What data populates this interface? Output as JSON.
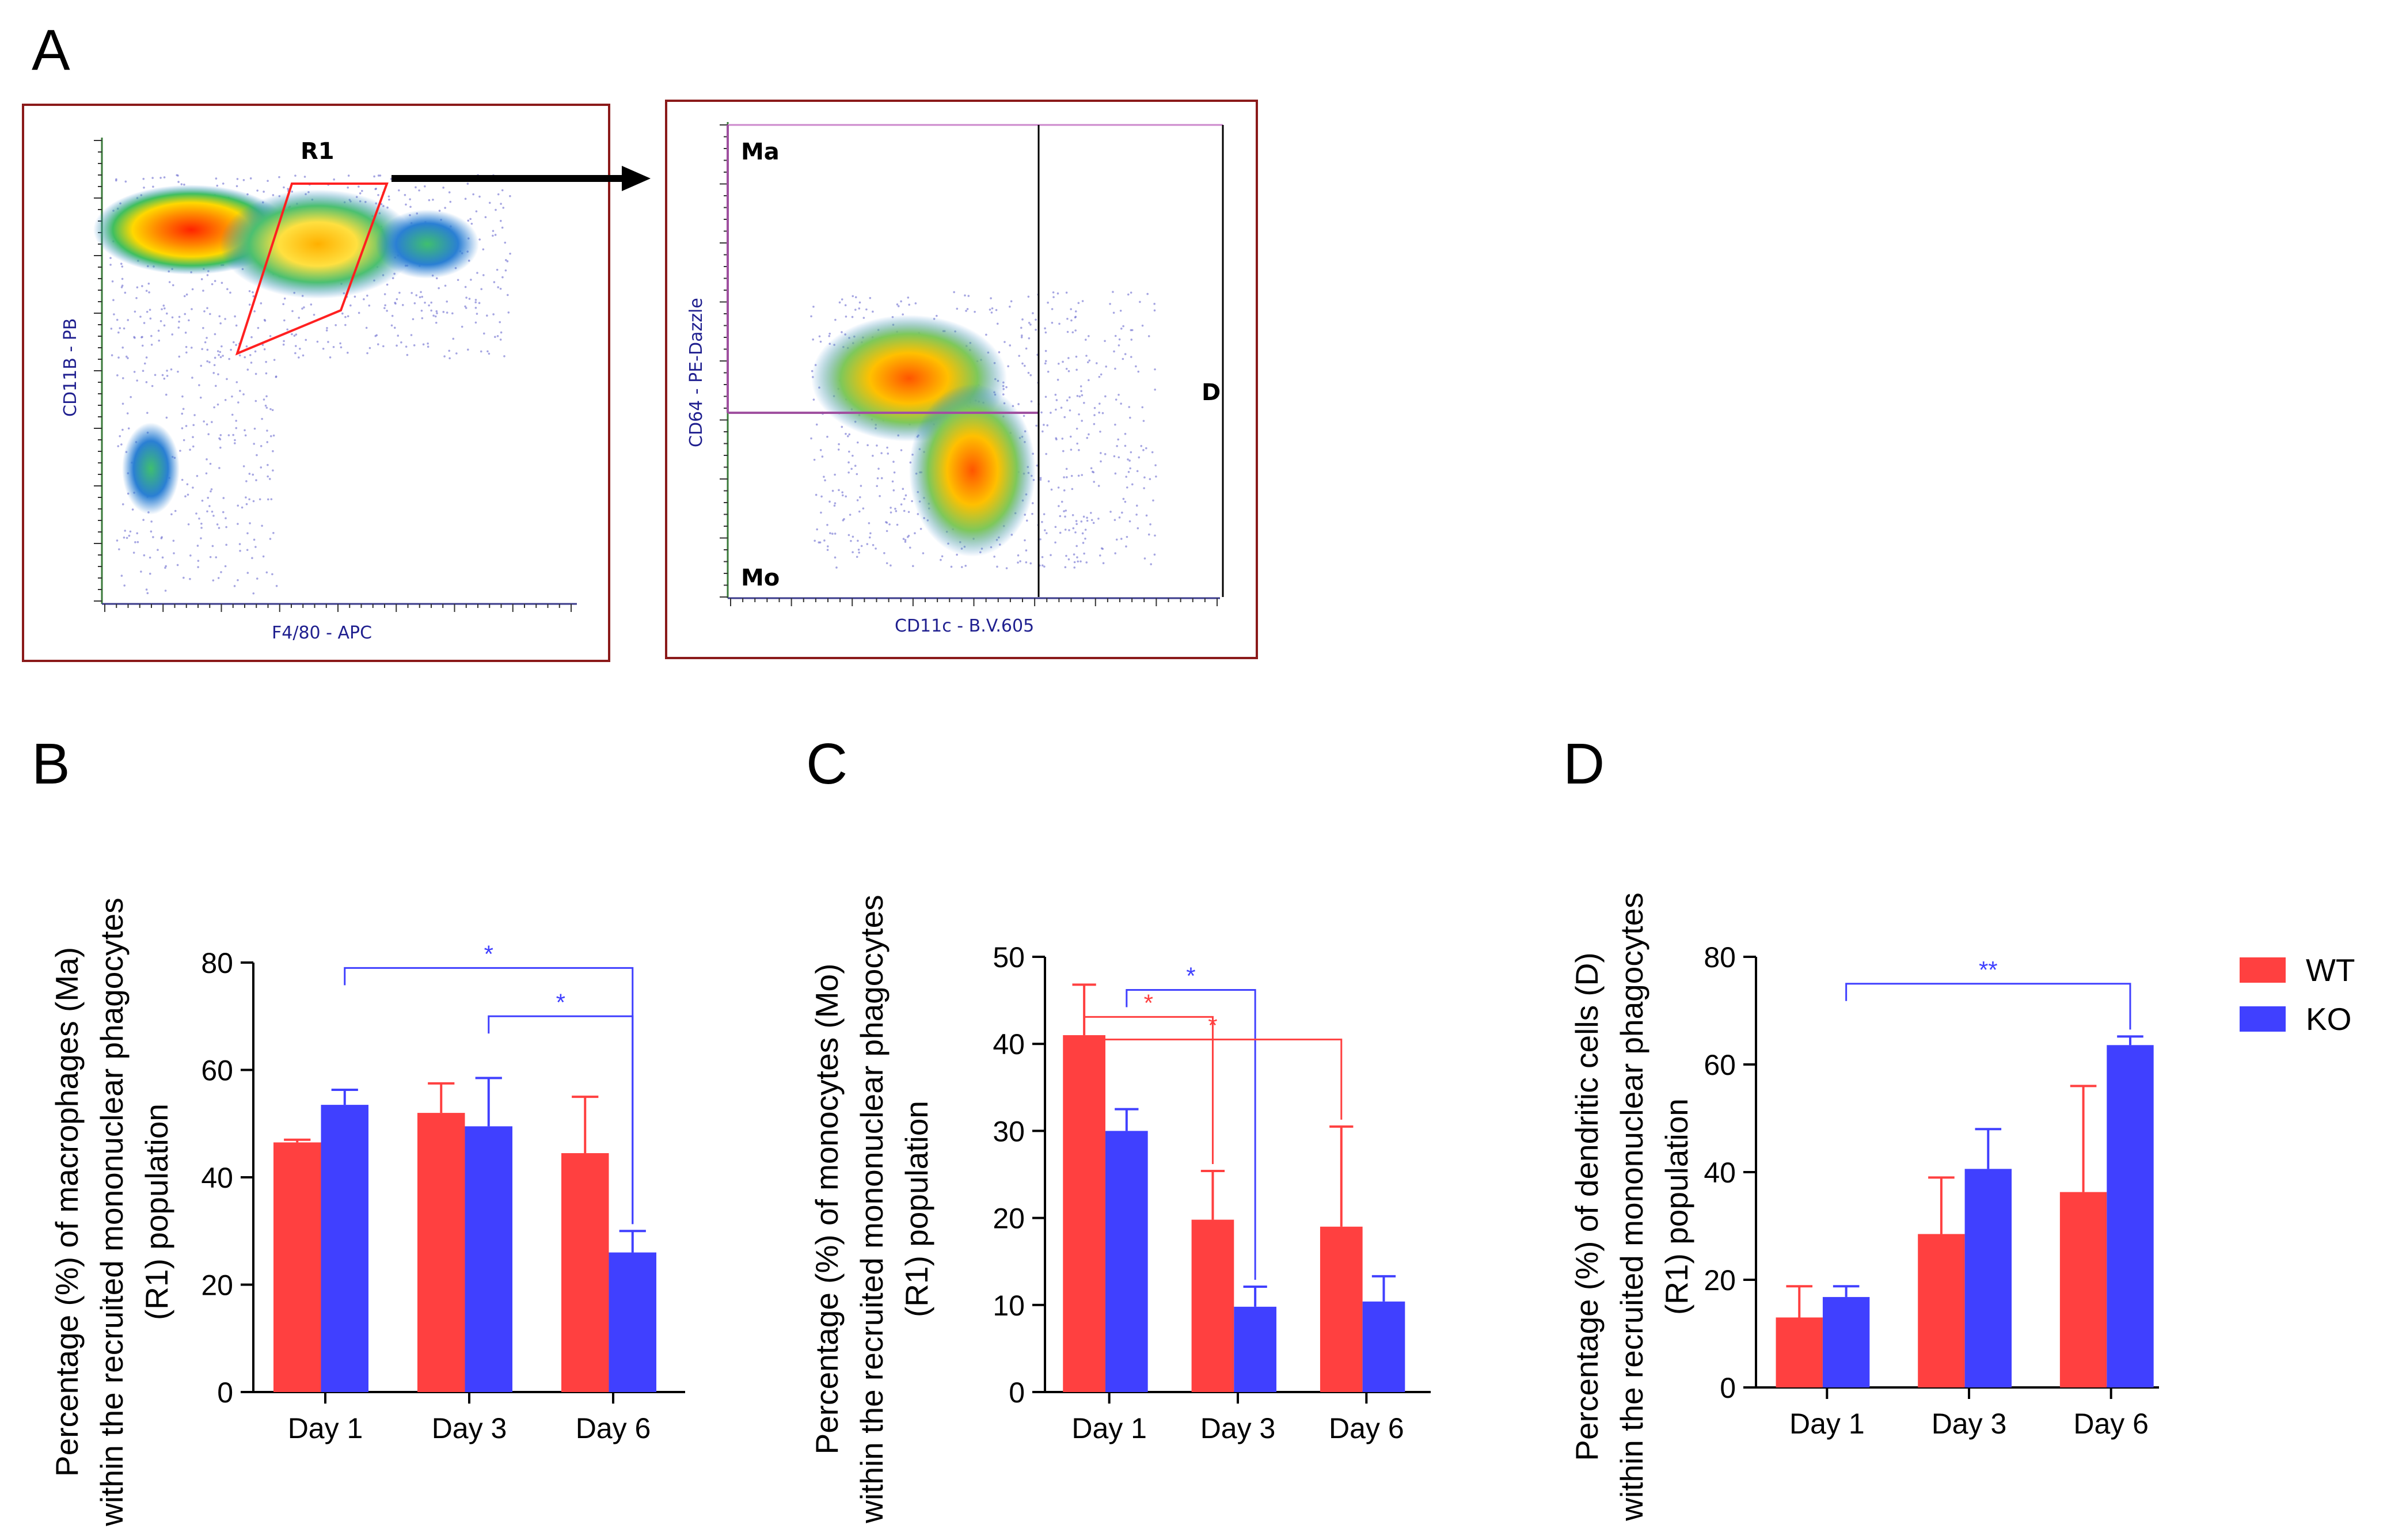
{
  "panels": {
    "a_letter": "A",
    "b_letter": "B",
    "c_letter": "C",
    "d_letter": "D"
  },
  "flow": {
    "left": {
      "gate": "R1",
      "xlabel": "F4/80 - APC",
      "ylabel": "CD11B - PB"
    },
    "right": {
      "q_ma": "Ma",
      "q_mo": "Mo",
      "q_d": "D",
      "xlabel": "CD11c - B.V.605",
      "ylabel": "CD64 - PE-Dazzle"
    }
  },
  "legend": {
    "wt": "WT",
    "ko": "KO"
  },
  "colors": {
    "wt": "#ff4040",
    "ko": "#4040ff",
    "frame": "#8b1a1a"
  },
  "chart_data": [
    {
      "type": "bar",
      "panel": "B",
      "categories": [
        "Day 1",
        "Day 3",
        "Day 6"
      ],
      "series": [
        {
          "name": "WT",
          "values": [
            46.5,
            52,
            44.5
          ],
          "errors": [
            0.5,
            5.5,
            10.5
          ]
        },
        {
          "name": "KO",
          "values": [
            53.5,
            49.5,
            26
          ],
          "errors": [
            2.8,
            9.0,
            4.0
          ]
        }
      ],
      "ylabel_lines": [
        "Percentage (%) of macrophages (Ma)",
        "within the recruited mononuclear phagocytes",
        "(R1) population"
      ],
      "ylim": [
        0,
        80
      ],
      "yticks": [
        0,
        20,
        40,
        60,
        80
      ],
      "significance": [
        {
          "from_group": 0,
          "from_series": 1,
          "to_group": 2,
          "to_series": 1,
          "level": 79,
          "label": "*",
          "color": "ko"
        },
        {
          "from_group": 1,
          "from_series": 1,
          "to_group": 2,
          "to_series": 1,
          "level": 70,
          "label": "*",
          "color": "ko"
        }
      ]
    },
    {
      "type": "bar",
      "panel": "C",
      "categories": [
        "Day 1",
        "Day 3",
        "Day 6"
      ],
      "series": [
        {
          "name": "WT",
          "values": [
            41,
            19.8,
            19
          ],
          "errors": [
            5.8,
            5.6,
            11.5
          ]
        },
        {
          "name": "KO",
          "values": [
            30,
            9.8,
            10.4
          ],
          "errors": [
            2.5,
            2.3,
            2.9
          ]
        }
      ],
      "ylabel_lines": [
        "Percentage (%) of monocytes (Mo)",
        "within the recruited mononuclear phagocytes",
        "(R1) population"
      ],
      "ylim": [
        0,
        50
      ],
      "yticks": [
        0,
        10,
        20,
        30,
        40,
        50
      ],
      "significance": [
        {
          "from_group": 0,
          "from_series": 1,
          "to_group": 1,
          "to_series": 1,
          "level": 46.2,
          "label": "*",
          "color": "ko"
        },
        {
          "from_group": 0,
          "from_series": 0,
          "to_group": 1,
          "to_series": 0,
          "level": 43.1,
          "label": "*",
          "color": "wt"
        },
        {
          "from_group": 0,
          "from_series": 0,
          "to_group": 2,
          "to_series": 0,
          "level": 40.5,
          "label": "*",
          "color": "wt"
        }
      ]
    },
    {
      "type": "bar",
      "panel": "D",
      "categories": [
        "Day 1",
        "Day 3",
        "Day 6"
      ],
      "series": [
        {
          "name": "WT",
          "values": [
            13,
            28.5,
            36.3
          ],
          "errors": [
            5.8,
            10.5,
            19.7
          ]
        },
        {
          "name": "KO",
          "values": [
            16.8,
            40.6,
            63.6
          ],
          "errors": [
            2.0,
            7.4,
            1.6
          ]
        }
      ],
      "ylabel_lines": [
        "Percentage (%) of dendritic cells (D)",
        "within the recruited mononuclear phagocytes",
        "(R1) population"
      ],
      "ylim": [
        0,
        80
      ],
      "yticks": [
        0,
        20,
        40,
        60,
        80
      ],
      "significance": [
        {
          "from_group": 0,
          "from_series": 1,
          "to_group": 2,
          "to_series": 1,
          "level": 75,
          "label": "**",
          "color": "ko"
        }
      ]
    }
  ]
}
